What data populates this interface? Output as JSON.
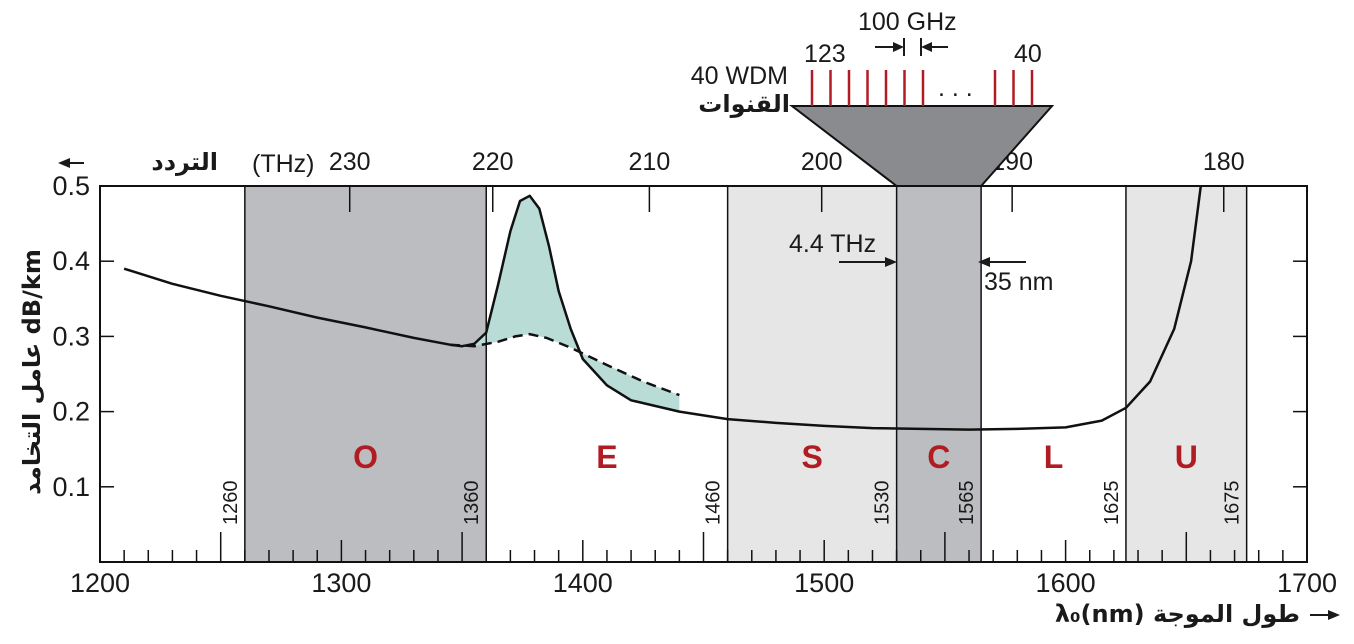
{
  "chart_data": {
    "type": "line",
    "xlabel": "λ₀(nm)  طول الموجة",
    "ylabel": "عامل التخامد dB/km",
    "top_axis_label": "(THz)",
    "top_axis_title": "التردد",
    "xlim": [
      1200,
      1700
    ],
    "ylim": [
      0,
      0.5
    ],
    "x_ticks": [
      1200,
      1300,
      1400,
      1500,
      1600,
      1700
    ],
    "x_tick_labels": [
      "1200",
      "1300",
      "1400",
      "1500",
      "1600",
      "1700"
    ],
    "y_ticks": [
      0.1,
      0.2,
      0.3,
      0.4,
      0.5
    ],
    "y_tick_labels": [
      "0.1",
      "0.2",
      "0.3",
      "0.4",
      "0.5"
    ],
    "top_ticks_thz": [
      180,
      190,
      200,
      210,
      220,
      230
    ],
    "top_tick_labels": [
      "180",
      "190",
      "200",
      "210",
      "220",
      "230"
    ],
    "bands": [
      {
        "name": "O",
        "start": 1260,
        "end": 1360,
        "start_label": "1260",
        "end_label": "1360",
        "color": "#bcbdc0"
      },
      {
        "name": "E",
        "start": 1360,
        "end": 1460,
        "start_label": "1360",
        "end_label": "1460",
        "color": "#ffffff"
      },
      {
        "name": "S",
        "start": 1460,
        "end": 1530,
        "start_label": "1460",
        "end_label": "1530",
        "color": "#e6e6e7"
      },
      {
        "name": "C",
        "start": 1530,
        "end": 1565,
        "start_label": "1530",
        "end_label": "1565",
        "color": "#bcbdc0"
      },
      {
        "name": "L",
        "start": 1565,
        "end": 1625,
        "start_label": "1565",
        "end_label": "1625",
        "color": "#ffffff"
      },
      {
        "name": "U",
        "start": 1625,
        "end": 1675,
        "start_label": "1625",
        "end_label": "1675",
        "color": "#e6e6e7"
      }
    ],
    "band_edge_labels": [
      "1260",
      "1360",
      "1460",
      "1530",
      "1565",
      "1625",
      "1675"
    ],
    "series": [
      {
        "style": "solid",
        "x": [
          1210,
          1230,
          1250,
          1270,
          1290,
          1310,
          1330,
          1345,
          1350,
          1355,
          1360,
          1365,
          1370,
          1374,
          1378,
          1382,
          1386,
          1390,
          1395,
          1400,
          1410,
          1420,
          1440,
          1460,
          1480,
          1500,
          1520,
          1540,
          1560,
          1580,
          1600,
          1615,
          1625,
          1635,
          1645,
          1652,
          1656
        ],
        "y": [
          0.39,
          0.37,
          0.354,
          0.34,
          0.325,
          0.312,
          0.298,
          0.289,
          0.287,
          0.29,
          0.305,
          0.37,
          0.44,
          0.48,
          0.487,
          0.47,
          0.42,
          0.36,
          0.31,
          0.27,
          0.235,
          0.215,
          0.2,
          0.19,
          0.185,
          0.181,
          0.178,
          0.177,
          0.176,
          0.177,
          0.179,
          0.188,
          0.205,
          0.24,
          0.31,
          0.4,
          0.5
        ]
      },
      {
        "style": "dashed",
        "x": [
          1345,
          1355,
          1365,
          1372,
          1378,
          1385,
          1395,
          1410,
          1425,
          1440
        ],
        "y": [
          0.289,
          0.287,
          0.293,
          0.3,
          0.303,
          0.298,
          0.285,
          0.262,
          0.24,
          0.222
        ]
      }
    ],
    "water_peak_fill_color": "#b9dcd6",
    "annotations": {
      "c_band_width_thz": "4.4 THz",
      "c_band_width_nm": "35 nm",
      "channel_spacing": "100 GHz",
      "channel_count_label": "40 WDM",
      "channels_word": "القنوات",
      "first_channels": "123",
      "last_channel": "40",
      "ellipsis": ". . ."
    },
    "wdm_channel_count_drawn": 10
  }
}
